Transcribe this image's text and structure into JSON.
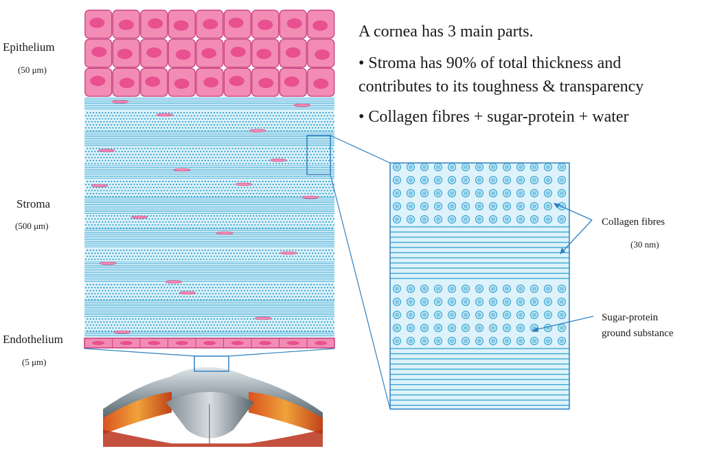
{
  "layers": {
    "epithelium": {
      "name": "Epithelium",
      "thickness": "(50 μm)"
    },
    "stroma": {
      "name": "Stroma",
      "thickness": "(500 μm)"
    },
    "endothelium": {
      "name": "Endothelium",
      "thickness": "(5 μm)"
    }
  },
  "text": {
    "heading": "A cornea has 3 main parts.",
    "bullet1_line1": "• Stroma has 90% of total thickness and",
    "bullet1_line2": "contributes to its toughness & transparency",
    "bullet2": "• Collagen fibres + sugar-protein + water"
  },
  "annotations": {
    "collagen": "Collagen fibres",
    "collagen_size": "(30 nm)",
    "ground_line1": "Sugar-protein",
    "ground_line2": "ground substance"
  },
  "colors": {
    "cell_fill": "#f28cb5",
    "cell_border": "#c63c7c",
    "nucleus": "#e8508f",
    "fiber": "#2a9fce",
    "stroma_bg": "#ddf2fa",
    "connector": "#2f7fc0",
    "text": "#1a1a1a"
  }
}
